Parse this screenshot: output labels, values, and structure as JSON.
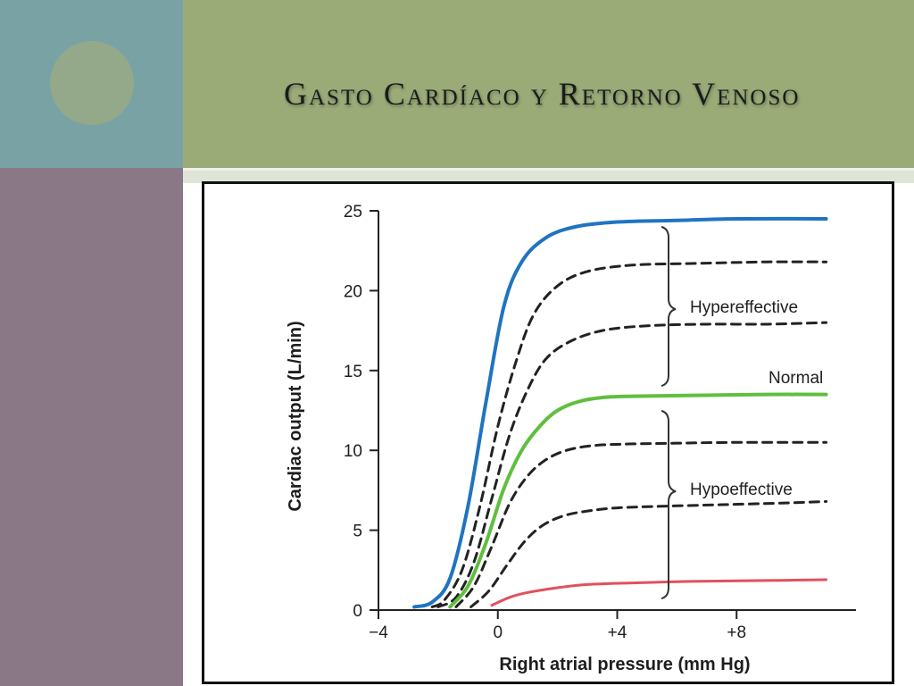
{
  "slide": {
    "title": "Gasto Cardíaco y Retorno Venoso",
    "colors": {
      "teal_block": "#79a2a4",
      "olive_block": "#9aab78",
      "purple_block": "#8a7887",
      "circle": "#94a98a"
    }
  },
  "chart_data": {
    "type": "line",
    "title": "",
    "xlabel": "Right atrial pressure (mm Hg)",
    "ylabel": "Cardiac output (L/min)",
    "xlim": [
      -4,
      12
    ],
    "ylim": [
      0,
      25
    ],
    "xticks": [
      -4,
      0,
      4,
      8
    ],
    "xtick_labels": [
      "−4",
      "0",
      "+4",
      "+8"
    ],
    "yticks": [
      0,
      5,
      10,
      15,
      20,
      25
    ],
    "ytick_labels": [
      "0",
      "5",
      "10",
      "15",
      "20",
      "25"
    ],
    "grid": false,
    "annotations": {
      "hypereffective": "Hypereffective",
      "normal": "Normal",
      "hypoeffective": "Hypoeffective"
    },
    "series": [
      {
        "color": "#1f74c1",
        "style": "solid",
        "width": 4,
        "x": [
          -2.8,
          -2.2,
          -1.6,
          -1.0,
          -0.4,
          0.2,
          0.8,
          1.6,
          2.6,
          4.0,
          6.0,
          8.0,
          11.0
        ],
        "y": [
          0.2,
          0.5,
          2.0,
          6.5,
          13.0,
          19.0,
          21.8,
          23.3,
          24.0,
          24.3,
          24.4,
          24.5,
          24.5
        ]
      },
      {
        "color": "#222222",
        "style": "dashed",
        "width": 3,
        "x": [
          -2.2,
          -1.8,
          -1.2,
          -0.6,
          0.0,
          0.6,
          1.2,
          2.0,
          3.0,
          4.5,
          6.5,
          9.0,
          11.0
        ],
        "y": [
          0.2,
          0.6,
          2.5,
          6.5,
          11.5,
          15.5,
          18.5,
          20.3,
          21.2,
          21.6,
          21.7,
          21.8,
          21.8
        ]
      },
      {
        "color": "#222222",
        "style": "dashed",
        "width": 3,
        "x": [
          -2.0,
          -1.4,
          -0.8,
          -0.2,
          0.4,
          1.0,
          1.6,
          2.4,
          3.5,
          5.0,
          7.0,
          9.0,
          11.0
        ],
        "y": [
          0.2,
          0.8,
          3.0,
          7.0,
          11.0,
          13.8,
          15.7,
          16.8,
          17.5,
          17.8,
          17.9,
          17.9,
          18.0
        ]
      },
      {
        "color": "#5fbf3f",
        "style": "solid",
        "width": 4,
        "x": [
          -1.6,
          -1.0,
          -0.4,
          0.2,
          0.8,
          1.4,
          2.0,
          2.8,
          3.8,
          5.0,
          7.0,
          9.0,
          11.0
        ],
        "y": [
          0.2,
          1.5,
          4.2,
          7.6,
          10.0,
          11.5,
          12.5,
          13.1,
          13.35,
          13.4,
          13.45,
          13.5,
          13.5
        ]
      },
      {
        "color": "#222222",
        "style": "dashed",
        "width": 3,
        "x": [
          -1.4,
          -0.8,
          -0.2,
          0.4,
          1.0,
          1.6,
          2.3,
          3.2,
          4.4,
          6.0,
          8.0,
          11.0
        ],
        "y": [
          0.2,
          1.5,
          4.0,
          6.7,
          8.4,
          9.4,
          10.0,
          10.3,
          10.4,
          10.45,
          10.5,
          10.5
        ]
      },
      {
        "color": "#222222",
        "style": "dashed",
        "width": 3,
        "x": [
          -0.9,
          -0.3,
          0.3,
          0.9,
          1.5,
          2.2,
          3.0,
          4.0,
          5.5,
          7.5,
          9.5,
          11.0
        ],
        "y": [
          0.2,
          1.2,
          2.8,
          4.3,
          5.3,
          5.9,
          6.2,
          6.4,
          6.5,
          6.6,
          6.7,
          6.8
        ]
      },
      {
        "color": "#e2505c",
        "style": "solid",
        "width": 3,
        "x": [
          -0.2,
          0.4,
          1.0,
          2.0,
          3.0,
          4.5,
          6.5,
          9.0,
          11.0
        ],
        "y": [
          0.3,
          0.8,
          1.1,
          1.4,
          1.6,
          1.7,
          1.8,
          1.85,
          1.9
        ]
      }
    ]
  }
}
